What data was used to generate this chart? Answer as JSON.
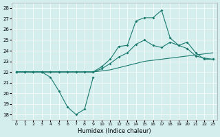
{
  "xlabel": "Humidex (Indice chaleur)",
  "background_color": "#d4eeee",
  "line_color": "#1a7a6e",
  "xlim": [
    -0.5,
    23.5
  ],
  "ylim": [
    17.5,
    28.5
  ],
  "xticks": [
    0,
    1,
    2,
    3,
    4,
    5,
    6,
    7,
    8,
    9,
    10,
    11,
    12,
    13,
    14,
    15,
    16,
    17,
    18,
    19,
    20,
    21,
    22,
    23
  ],
  "yticks": [
    18,
    19,
    20,
    21,
    22,
    23,
    24,
    25,
    26,
    27,
    28
  ],
  "s1_x": [
    0,
    1,
    2,
    3,
    4,
    5,
    6,
    7,
    8,
    9
  ],
  "s1_y": [
    22,
    22,
    22,
    22,
    21.5,
    20.2,
    18.7,
    18,
    18.5,
    21.5
  ],
  "s2_x": [
    0,
    1,
    2,
    3,
    4,
    5,
    6,
    7,
    8,
    9,
    10,
    11,
    12,
    13,
    14,
    15,
    16,
    17,
    18,
    19,
    20,
    21,
    22,
    23
  ],
  "s2_y": [
    22,
    22,
    22,
    22,
    22,
    22,
    22,
    22,
    22,
    22,
    22.1,
    22.2,
    22.4,
    22.6,
    22.8,
    23.0,
    23.1,
    23.2,
    23.3,
    23.4,
    23.5,
    23.6,
    23.7,
    23.8
  ],
  "s3_x": [
    0,
    1,
    2,
    3,
    4,
    5,
    6,
    7,
    8,
    9,
    10,
    11,
    12,
    13,
    14,
    15,
    16,
    17,
    18,
    19,
    20,
    21,
    22,
    23
  ],
  "s3_y": [
    22,
    22,
    22,
    22,
    22,
    22,
    22,
    22,
    22,
    22,
    22.5,
    23.2,
    24.4,
    24.5,
    26.8,
    27.1,
    27.1,
    27.8,
    25.2,
    24.5,
    24.8,
    23.8,
    23.2,
    23.2
  ],
  "s4_x": [
    0,
    1,
    2,
    3,
    4,
    5,
    6,
    7,
    8,
    9,
    10,
    11,
    12,
    13,
    14,
    15,
    16,
    17,
    18,
    19,
    20,
    21,
    22,
    23
  ],
  "s4_y": [
    22,
    22,
    22,
    22,
    22,
    22,
    22,
    22,
    22,
    22,
    22.3,
    22.8,
    23.4,
    23.8,
    24.6,
    25.0,
    24.5,
    24.3,
    24.8,
    24.5,
    24.2,
    23.5,
    23.3,
    23.2
  ]
}
